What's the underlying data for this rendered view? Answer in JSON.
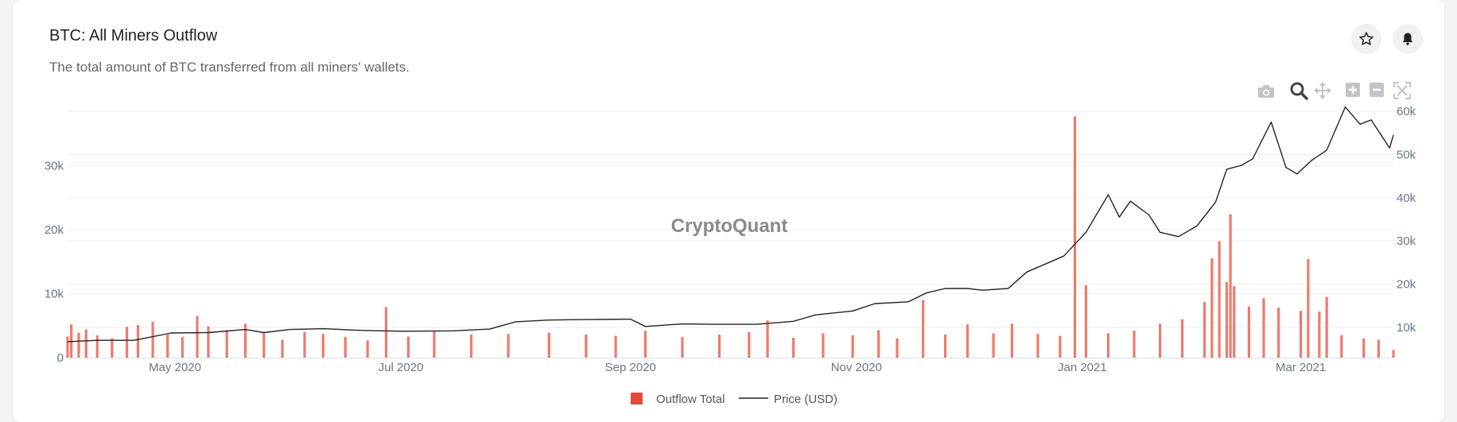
{
  "header": {
    "title": "BTC: All Miners Outflow",
    "subtitle": "The total amount of BTC transferred from all miners' wallets."
  },
  "watermark": "CryptoQuant",
  "icons": {
    "favorite": "star-icon",
    "alert": "bell-icon",
    "toolbar": [
      "camera-icon",
      "zoom-icon",
      "pan-icon",
      "zoom-in-icon",
      "zoom-out-icon",
      "autoscale-icon"
    ]
  },
  "colors": {
    "bar": "#ee7a6d",
    "legend_bar": "#e6483b",
    "line": "#222222",
    "grid": "#eeeeee",
    "tick": "#667788"
  },
  "chart_data": {
    "type": "bar",
    "x_range": [
      "2020-04-02",
      "2021-03-26"
    ],
    "x_ticks": [
      {
        "date": "2020-05-01",
        "label": "May 2020"
      },
      {
        "date": "2020-07-01",
        "label": "Jul 2020"
      },
      {
        "date": "2020-09-01",
        "label": "Sep 2020"
      },
      {
        "date": "2020-11-01",
        "label": "Nov 2020"
      },
      {
        "date": "2021-01-01",
        "label": "Jan 2021"
      },
      {
        "date": "2021-03-01",
        "label": "Mar 2021"
      }
    ],
    "y_left": {
      "range": [
        0,
        38500
      ],
      "ticks": [
        0,
        10000,
        20000,
        30000
      ],
      "tick_labels": [
        "0",
        "10k",
        "20k",
        "30k"
      ]
    },
    "y_right": {
      "range": [
        3000,
        60000
      ],
      "ticks": [
        10000,
        20000,
        30000,
        40000,
        50000,
        60000
      ],
      "tick_labels": [
        "10k",
        "20k",
        "30k",
        "40k",
        "50k",
        "60k"
      ]
    },
    "legend": {
      "placement": "bottom-center",
      "entries": [
        "Outflow Total",
        "Price (USD)"
      ]
    },
    "grid": true,
    "series": [
      {
        "name": "Outflow Total",
        "kind": "bar",
        "axis": "left",
        "points": [
          [
            "2020-04-02",
            3300
          ],
          [
            "2020-04-03",
            5200
          ],
          [
            "2020-04-05",
            3900
          ],
          [
            "2020-04-07",
            4400
          ],
          [
            "2020-04-10",
            3500
          ],
          [
            "2020-04-14",
            3000
          ],
          [
            "2020-04-18",
            4800
          ],
          [
            "2020-04-21",
            5100
          ],
          [
            "2020-04-25",
            5600
          ],
          [
            "2020-04-29",
            3600
          ],
          [
            "2020-05-03",
            3200
          ],
          [
            "2020-05-07",
            6500
          ],
          [
            "2020-05-10",
            4900
          ],
          [
            "2020-05-15",
            4300
          ],
          [
            "2020-05-20",
            5300
          ],
          [
            "2020-05-25",
            4000
          ],
          [
            "2020-05-30",
            2800
          ],
          [
            "2020-06-05",
            4000
          ],
          [
            "2020-06-10",
            3700
          ],
          [
            "2020-06-16",
            3200
          ],
          [
            "2020-06-22",
            2700
          ],
          [
            "2020-06-27",
            7900
          ],
          [
            "2020-07-03",
            3300
          ],
          [
            "2020-07-10",
            4200
          ],
          [
            "2020-07-20",
            3600
          ],
          [
            "2020-07-30",
            3700
          ],
          [
            "2020-08-10",
            3900
          ],
          [
            "2020-08-20",
            3600
          ],
          [
            "2020-08-28",
            3400
          ],
          [
            "2020-09-05",
            4200
          ],
          [
            "2020-09-15",
            3200
          ],
          [
            "2020-09-25",
            3600
          ],
          [
            "2020-10-03",
            4000
          ],
          [
            "2020-10-08",
            5800
          ],
          [
            "2020-10-15",
            3100
          ],
          [
            "2020-10-23",
            3800
          ],
          [
            "2020-10-31",
            3500
          ],
          [
            "2020-11-07",
            4300
          ],
          [
            "2020-11-12",
            3000
          ],
          [
            "2020-11-19",
            9000
          ],
          [
            "2020-11-25",
            3600
          ],
          [
            "2020-12-01",
            5200
          ],
          [
            "2020-12-08",
            3800
          ],
          [
            "2020-12-13",
            5300
          ],
          [
            "2020-12-20",
            3700
          ],
          [
            "2020-12-26",
            3400
          ],
          [
            "2020-12-30",
            37700
          ],
          [
            "2021-01-02",
            11300
          ],
          [
            "2021-01-08",
            3800
          ],
          [
            "2021-01-15",
            4200
          ],
          [
            "2021-01-22",
            5300
          ],
          [
            "2021-01-28",
            6000
          ],
          [
            "2021-02-03",
            8700
          ],
          [
            "2021-02-05",
            15500
          ],
          [
            "2021-02-07",
            18200
          ],
          [
            "2021-02-09",
            11800
          ],
          [
            "2021-02-10",
            22400
          ],
          [
            "2021-02-11",
            11200
          ],
          [
            "2021-02-15",
            8000
          ],
          [
            "2021-02-19",
            9300
          ],
          [
            "2021-02-23",
            7800
          ],
          [
            "2021-03-01",
            7300
          ],
          [
            "2021-03-03",
            15400
          ],
          [
            "2021-03-06",
            7200
          ],
          [
            "2021-03-08",
            9500
          ],
          [
            "2021-03-12",
            3500
          ],
          [
            "2021-03-18",
            3000
          ],
          [
            "2021-03-22",
            2800
          ],
          [
            "2021-03-26",
            1200
          ]
        ]
      },
      {
        "name": "Price (USD)",
        "kind": "line",
        "axis": "right",
        "points": [
          [
            "2020-04-02",
            6700
          ],
          [
            "2020-04-10",
            7000
          ],
          [
            "2020-04-20",
            7000
          ],
          [
            "2020-04-30",
            8700
          ],
          [
            "2020-05-10",
            8800
          ],
          [
            "2020-05-20",
            9500
          ],
          [
            "2020-05-25",
            8800
          ],
          [
            "2020-06-01",
            9500
          ],
          [
            "2020-06-10",
            9700
          ],
          [
            "2020-06-20",
            9300
          ],
          [
            "2020-07-01",
            9100
          ],
          [
            "2020-07-15",
            9200
          ],
          [
            "2020-07-25",
            9600
          ],
          [
            "2020-08-01",
            11300
          ],
          [
            "2020-08-10",
            11700
          ],
          [
            "2020-08-20",
            11800
          ],
          [
            "2020-09-01",
            11900
          ],
          [
            "2020-09-05",
            10200
          ],
          [
            "2020-09-15",
            10800
          ],
          [
            "2020-09-25",
            10700
          ],
          [
            "2020-10-05",
            10700
          ],
          [
            "2020-10-15",
            11400
          ],
          [
            "2020-10-21",
            12900
          ],
          [
            "2020-10-31",
            13800
          ],
          [
            "2020-11-06",
            15500
          ],
          [
            "2020-11-15",
            15900
          ],
          [
            "2020-11-20",
            18000
          ],
          [
            "2020-11-25",
            19000
          ],
          [
            "2020-12-01",
            19000
          ],
          [
            "2020-12-05",
            18600
          ],
          [
            "2020-12-12",
            19000
          ],
          [
            "2020-12-17",
            22800
          ],
          [
            "2020-12-27",
            26500
          ],
          [
            "2021-01-02",
            32000
          ],
          [
            "2021-01-08",
            40700
          ],
          [
            "2021-01-11",
            35500
          ],
          [
            "2021-01-14",
            39200
          ],
          [
            "2021-01-19",
            36000
          ],
          [
            "2021-01-22",
            32000
          ],
          [
            "2021-01-27",
            31000
          ],
          [
            "2021-02-01",
            33500
          ],
          [
            "2021-02-06",
            39000
          ],
          [
            "2021-02-09",
            46600
          ],
          [
            "2021-02-13",
            47500
          ],
          [
            "2021-02-16",
            49000
          ],
          [
            "2021-02-21",
            57500
          ],
          [
            "2021-02-25",
            47000
          ],
          [
            "2021-02-28",
            45500
          ],
          [
            "2021-03-04",
            48700
          ],
          [
            "2021-03-08",
            51000
          ],
          [
            "2021-03-13",
            61000
          ],
          [
            "2021-03-17",
            57000
          ],
          [
            "2021-03-20",
            58000
          ],
          [
            "2021-03-25",
            51500
          ],
          [
            "2021-03-26",
            54500
          ]
        ]
      }
    ]
  }
}
